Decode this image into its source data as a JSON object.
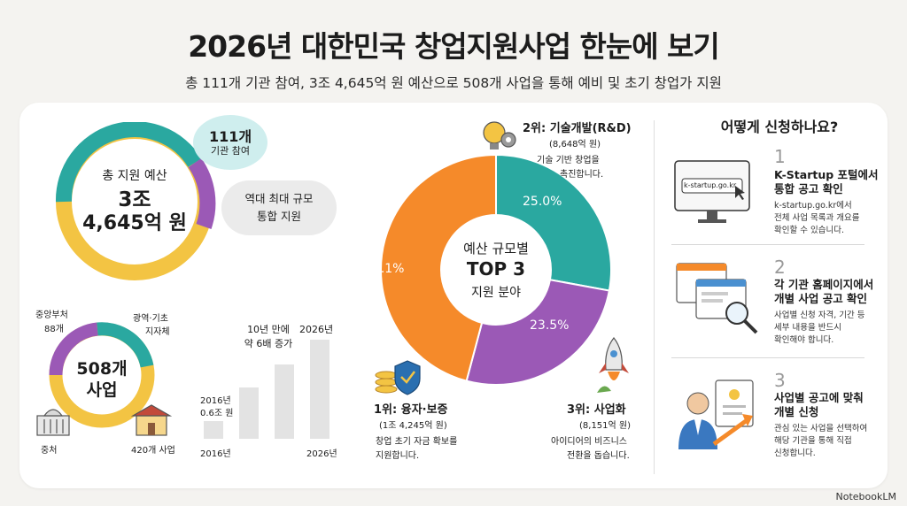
{
  "title": "2026년 대한민국 창업지원사업 한눈에 보기",
  "subtitle": "총 111개 기관 참여, 3조 4,645억 원 예산으로 508개 사업을 통해 예비 및 초기 창업가 지원",
  "budget_ring": {
    "label": "총 지원 예산",
    "amount_line1": "3조",
    "amount_line2": "4,645억 원",
    "orgs_count": "111개",
    "orgs_label": "기관 참여",
    "note_line1": "역대 최대 규모",
    "note_line2": "통합 지원"
  },
  "programs_ring": {
    "center_line1": "508개",
    "center_line2": "사업",
    "central_label": "중앙부처",
    "central_count": "88개",
    "local_label": "광역·기초",
    "local_label2": "지자체",
    "bottom_left": "중처",
    "bottom_right": "420개 사업"
  },
  "growth_chart": {
    "annotation_line1": "10년 만에",
    "annotation_line2": "약 6배 증가",
    "start_year_label": "2016년",
    "start_value_label": "0.6조 원",
    "end_year_label": "2026년",
    "x_start": "2016년",
    "x_end": "2026년"
  },
  "chart_data": {
    "type": "pie",
    "title": "예산 규모별 TOP 3 지원 분야",
    "center_line1": "예산 규모별",
    "center_line2": "TOP 3",
    "center_line3": "지원 분야",
    "slices": [
      {
        "rank": "2위: 기술개발(R&D)",
        "amount": "(8,648억 원)",
        "desc1": "기술 기반 창업을",
        "desc2": "촉진합니다.",
        "percent_label": "25.0%",
        "value": 25.0,
        "color": "#2aa8a0"
      },
      {
        "rank": "3위: 사업화",
        "amount": "(8,151억 원)",
        "desc1": "아이디어의 비즈니스",
        "desc2": "전환을 돕습니다.",
        "percent_label": "23.5%",
        "value": 23.5,
        "color": "#9b59b6"
      },
      {
        "rank": "1위: 융자·보증",
        "amount": "(1조 4,245억 원)",
        "desc1": "창업 초기 자금 확보를",
        "desc2": "지원합니다.",
        "percent_label": "41.1%",
        "value": 41.1,
        "color": "#f58a2a"
      }
    ]
  },
  "steps": {
    "title": "어떻게 신청하나요?",
    "url_text": "k-startup.go.kr",
    "items": [
      {
        "num": "1",
        "title1": "K-Startup 포털에서",
        "title2": "통합 공고 확인",
        "desc1": "k-startup.go.kr에서",
        "desc2": "전체 사업 목록과 개요를",
        "desc3": "확인할 수 있습니다."
      },
      {
        "num": "2",
        "title1": "각 기관 홈페이지에서",
        "title2": "개별 사업 공고 확인",
        "desc1": "사업별 신청 자격, 기간 등",
        "desc2": "세부 내용을 반드시",
        "desc3": "확인해야 합니다."
      },
      {
        "num": "3",
        "title1": "사업별 공고에 맞춰",
        "title2": "개별 신청",
        "desc1": "관심 있는 사업을 선택하여",
        "desc2": "해당 기관을 통해 직접",
        "desc3": "신청합니다."
      }
    ]
  },
  "footer": "NotebookLM",
  "colors": {
    "teal": "#2aa8a0",
    "purple": "#9b59b6",
    "orange": "#f58a2a",
    "yellow": "#f3c443"
  }
}
